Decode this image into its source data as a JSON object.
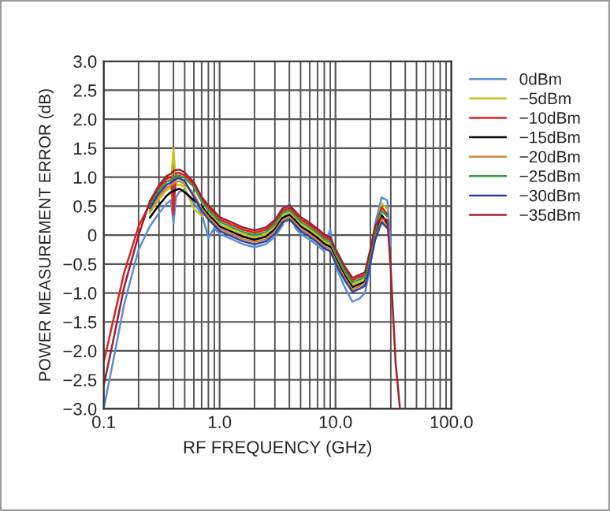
{
  "chart_data": {
    "type": "line",
    "xlabel": "RF FREQUENCY (GHz)",
    "ylabel": "POWER MEASUREMENT ERROR (dB)",
    "log": "x",
    "xlim": [
      0.1,
      100
    ],
    "xticks": [
      {
        "value": 0.1,
        "label": "0.1"
      },
      {
        "value": 1,
        "label": "1.0"
      },
      {
        "value": 10,
        "label": "10.0"
      },
      {
        "value": 100,
        "label": "100.0"
      }
    ],
    "ylim": [
      -3.0,
      3.0
    ],
    "yticks": [
      {
        "value": -3.0,
        "label": "−3.0"
      },
      {
        "value": -2.5,
        "label": "−2.5"
      },
      {
        "value": -2.0,
        "label": "−2.0"
      },
      {
        "value": -1.5,
        "label": "−1.5"
      },
      {
        "value": -1.0,
        "label": "−1.0"
      },
      {
        "value": -0.5,
        "label": "−0.5"
      },
      {
        "value": 0,
        "label": "0"
      },
      {
        "value": 0.5,
        "label": "0.5"
      },
      {
        "value": 1.0,
        "label": "1.0"
      },
      {
        "value": 1.5,
        "label": "1.5"
      },
      {
        "value": 2.0,
        "label": "2.0"
      },
      {
        "value": 2.5,
        "label": "2.5"
      },
      {
        "value": 3.0,
        "label": "3.0"
      }
    ],
    "grid": true,
    "legend": "right",
    "marker": "none",
    "line_style": "solid",
    "x": [
      0.1,
      0.12,
      0.15,
      0.2,
      0.25,
      0.3,
      0.35,
      0.38,
      0.4,
      0.42,
      0.45,
      0.5,
      0.6,
      0.7,
      0.8,
      0.9,
      1.0,
      1.3,
      1.6,
      2.0,
      2.5,
      3.0,
      3.5,
      4.0,
      4.5,
      5.0,
      6.0,
      7.0,
      8.0,
      9.0,
      10.0,
      12.0,
      14.0,
      16.0,
      18.0,
      20.0,
      22.0,
      25.0,
      28.0,
      30.0,
      33.0,
      36.0
    ],
    "series": [
      {
        "name": "0dBm",
        "color": "#5b8fd6",
        "values": [
          -3.0,
          -2.2,
          -1.2,
          -0.25,
          0.15,
          0.38,
          0.55,
          0.6,
          0.2,
          0.65,
          0.75,
          0.78,
          0.55,
          0.37,
          -0.05,
          0.12,
          0.02,
          -0.08,
          -0.16,
          -0.21,
          -0.16,
          -0.03,
          0.17,
          0.56,
          0.12,
          0.02,
          -0.08,
          -0.18,
          -0.28,
          0.1,
          -0.53,
          -0.9,
          -1.15,
          -1.1,
          -1.0,
          -0.53,
          0.2,
          0.65,
          0.6,
          -0.2,
          null,
          null
        ]
      },
      {
        "name": "−5dBm",
        "color": "#c8c21a",
        "values": [
          null,
          null,
          null,
          null,
          0.38,
          0.62,
          0.78,
          0.82,
          1.5,
          0.86,
          0.87,
          0.83,
          0.45,
          0.33,
          0.39,
          0.29,
          0.19,
          0.09,
          0.01,
          -0.04,
          0.01,
          0.14,
          0.34,
          0.39,
          0.29,
          0.19,
          0.09,
          -0.01,
          -0.11,
          -0.16,
          -0.36,
          -0.66,
          -0.86,
          -0.81,
          -0.76,
          -0.36,
          0.04,
          0.55,
          0.45,
          null,
          null,
          null
        ]
      },
      {
        "name": "−10dBm",
        "color": "#e02020",
        "values": [
          -2.2,
          -1.5,
          -0.65,
          0.15,
          0.54,
          0.82,
          0.97,
          1.01,
          0.35,
          1.07,
          1.07,
          1.03,
          0.87,
          0.62,
          0.47,
          0.37,
          0.27,
          0.17,
          0.09,
          0.04,
          0.09,
          0.22,
          0.42,
          0.47,
          0.37,
          0.27,
          0.17,
          0.07,
          -0.03,
          -0.08,
          -0.28,
          -0.58,
          -0.78,
          -0.73,
          -0.68,
          -0.28,
          0.12,
          0.48,
          0.36,
          null,
          null,
          null
        ]
      },
      {
        "name": "−15dBm",
        "color": "#000000",
        "values": [
          null,
          null,
          null,
          null,
          0.3,
          0.52,
          0.68,
          0.74,
          0.76,
          0.78,
          0.8,
          0.74,
          0.6,
          0.5,
          0.35,
          0.25,
          0.15,
          0.05,
          -0.03,
          -0.08,
          -0.03,
          0.1,
          0.3,
          0.35,
          0.25,
          0.15,
          0.05,
          -0.05,
          -0.15,
          -0.2,
          -0.4,
          -0.7,
          -0.9,
          -0.85,
          -0.8,
          -0.4,
          0.0,
          0.35,
          0.2,
          null,
          null,
          null
        ]
      },
      {
        "name": "−20dBm",
        "color": "#d0883a",
        "values": [
          null,
          null,
          null,
          null,
          0.42,
          0.67,
          0.82,
          0.86,
          0.89,
          0.92,
          0.93,
          0.88,
          0.71,
          0.46,
          0.31,
          0.21,
          0.11,
          0.01,
          -0.07,
          -0.12,
          -0.07,
          0.06,
          0.26,
          0.31,
          0.21,
          0.11,
          0.01,
          -0.09,
          -0.19,
          -0.24,
          -0.44,
          -0.74,
          -0.94,
          -0.89,
          -0.84,
          -0.44,
          -0.04,
          0.26,
          0.16,
          null,
          null,
          null
        ]
      },
      {
        "name": "−25dBm",
        "color": "#3a9a4a",
        "values": [
          null,
          null,
          null,
          null,
          0.5,
          0.77,
          0.92,
          0.96,
          0.99,
          1.02,
          1.03,
          0.98,
          0.83,
          0.58,
          0.43,
          0.33,
          0.23,
          0.13,
          0.05,
          0.0,
          0.05,
          0.18,
          0.38,
          0.43,
          0.33,
          0.23,
          0.13,
          0.03,
          -0.07,
          -0.12,
          -0.32,
          -0.62,
          -0.82,
          -0.77,
          -0.72,
          -0.32,
          0.08,
          0.42,
          0.32,
          null,
          null,
          null
        ]
      },
      {
        "name": "−30dBm",
        "color": "#3040a0",
        "values": [
          null,
          null,
          null,
          null,
          0.46,
          0.72,
          0.87,
          0.91,
          0.94,
          0.97,
          0.98,
          0.93,
          0.66,
          0.42,
          0.27,
          0.17,
          0.07,
          -0.03,
          -0.11,
          -0.16,
          -0.11,
          0.02,
          0.22,
          0.27,
          0.17,
          0.07,
          -0.03,
          -0.13,
          -0.23,
          -0.28,
          -0.48,
          -0.78,
          -0.98,
          -0.93,
          -0.88,
          -0.48,
          -0.08,
          0.22,
          0.12,
          null,
          null,
          null
        ]
      },
      {
        "name": "−35dBm",
        "color": "#a02030",
        "values": [
          -2.6,
          -1.85,
          -0.9,
          0.0,
          0.58,
          0.86,
          1.02,
          1.06,
          1.11,
          1.12,
          1.13,
          1.08,
          0.91,
          0.66,
          0.51,
          0.41,
          0.31,
          0.21,
          0.13,
          0.08,
          0.13,
          0.26,
          0.46,
          0.51,
          0.41,
          0.31,
          0.21,
          0.11,
          0.01,
          -0.04,
          -0.24,
          -0.54,
          -0.74,
          -0.69,
          -0.64,
          -0.24,
          0.16,
          0.3,
          0.26,
          -0.6,
          -2.2,
          -3.0
        ]
      }
    ]
  }
}
